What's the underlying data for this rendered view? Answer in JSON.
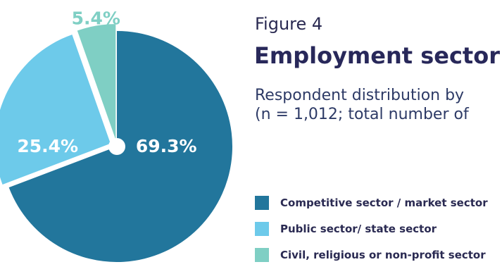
{
  "figure_label": "Figure 4",
  "title": "Employment sector",
  "subtitle_lines": [
    "Respondent distribution by",
    "(n = 1,012; total number of"
  ],
  "colors": {
    "competitive": "#22769c",
    "public": "#6dcaea",
    "civil": "#7fcfc4",
    "center_hole": "#ffffff",
    "label_inside": "#ffffff",
    "label_outside": "#7fcfc4"
  },
  "chart_data": {
    "type": "pie",
    "title": "Employment sector",
    "slices": [
      {
        "label": "Competitive sector / market sector",
        "value": 69.3,
        "display": "69.3%",
        "color": "#22769c",
        "exploded": false,
        "label_position": "inside"
      },
      {
        "label": "Public sector/ state sector",
        "value": 25.4,
        "display": "25.4%",
        "color": "#6dcaea",
        "exploded": true,
        "label_position": "inside"
      },
      {
        "label": "Civil, religious or non-profit sector",
        "value": 5.4,
        "display": "5.4%",
        "color": "#7fcfc4",
        "exploded": true,
        "label_position": "outside"
      }
    ],
    "legend_placement": "bottom-right"
  }
}
